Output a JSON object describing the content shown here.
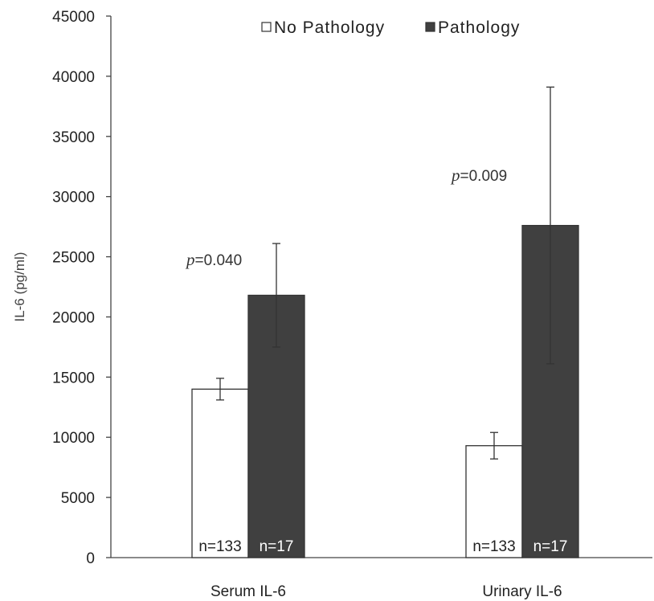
{
  "chart_data": {
    "type": "bar",
    "title": "",
    "xlabel": "",
    "ylabel": "IL-6 (pg/ml)",
    "ylim": [
      0,
      45000
    ],
    "yticks": [
      0,
      5000,
      10000,
      15000,
      20000,
      25000,
      30000,
      35000,
      40000,
      45000
    ],
    "grid": false,
    "legend_position": "top",
    "categories": [
      "Serum IL-6",
      "Urinary IL-6"
    ],
    "series": [
      {
        "name": "No Pathology",
        "color": "#ffffff",
        "values": [
          14000,
          9300
        ],
        "error": [
          900,
          1100
        ],
        "n_labels": [
          "n=133",
          "n=133"
        ]
      },
      {
        "name": "Pathology",
        "color": "#404040",
        "values": [
          21800,
          27600
        ],
        "error": [
          4300,
          11500
        ],
        "n_labels": [
          "n=17",
          "n=17"
        ]
      }
    ],
    "annotations": [
      {
        "category": "Serum IL-6",
        "p_symbol": "p",
        "text": "=0.040"
      },
      {
        "category": "Urinary IL-6",
        "p_symbol": "p",
        "text": "=0.009"
      }
    ]
  }
}
